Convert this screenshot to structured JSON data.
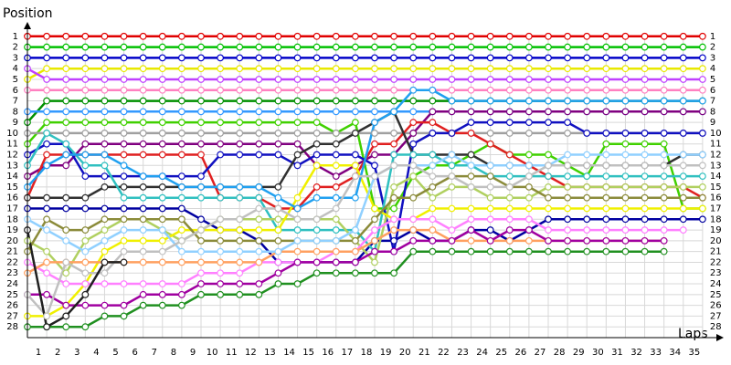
{
  "chart_data": {
    "type": "line",
    "title": "Position",
    "x_label": "Laps",
    "y_inverted": true,
    "grid": true,
    "x": [
      0,
      1,
      2,
      3,
      4,
      5,
      6,
      7,
      8,
      9,
      10,
      11,
      12,
      13,
      14,
      15,
      16,
      17,
      18,
      19,
      20,
      21,
      22,
      23,
      24,
      25,
      26,
      27,
      28,
      29,
      30,
      31,
      32,
      33,
      34,
      35
    ],
    "xlim": [
      0,
      36
    ],
    "xticks": [
      1,
      2,
      3,
      4,
      5,
      6,
      7,
      8,
      9,
      10,
      11,
      12,
      13,
      14,
      15,
      16,
      17,
      18,
      19,
      20,
      21,
      22,
      23,
      24,
      25,
      26,
      27,
      28,
      29,
      30,
      31,
      32,
      33,
      34,
      35
    ],
    "ylim": [
      0,
      29
    ],
    "yticks": [
      1,
      2,
      3,
      4,
      5,
      6,
      7,
      8,
      9,
      10,
      11,
      12,
      13,
      14,
      15,
      16,
      17,
      18,
      19,
      20,
      21,
      22,
      23,
      24,
      25,
      26,
      27,
      28
    ],
    "series": [
      {
        "color": "#e00000",
        "values": [
          1,
          1,
          1,
          1,
          1,
          1,
          1,
          1,
          1,
          1,
          1,
          1,
          1,
          1,
          1,
          1,
          1,
          1,
          1,
          1,
          1,
          1,
          1,
          1,
          1,
          1,
          1,
          1,
          1,
          1,
          1,
          1,
          1,
          1,
          1,
          1
        ]
      },
      {
        "color": "#00c000",
        "values": [
          2,
          2,
          2,
          2,
          2,
          2,
          2,
          2,
          2,
          2,
          2,
          2,
          2,
          2,
          2,
          2,
          2,
          2,
          2,
          2,
          2,
          2,
          2,
          2,
          2,
          2,
          2,
          2,
          2,
          2,
          2,
          2,
          2,
          2,
          2,
          2
        ]
      },
      {
        "color": "#0000c8",
        "values": [
          3,
          3,
          3,
          3,
          3,
          3,
          3,
          3,
          3,
          3,
          3,
          3,
          3,
          3,
          3,
          3,
          3,
          3,
          3,
          3,
          3,
          3,
          3,
          3,
          3,
          3,
          3,
          3,
          3,
          3,
          3,
          3,
          3,
          3,
          3,
          3
        ]
      },
      {
        "color": "#e8e800",
        "values": [
          5,
          4,
          4,
          4,
          4,
          4,
          4,
          4,
          4,
          4,
          4,
          4,
          4,
          4,
          4,
          4,
          4,
          4,
          4,
          4,
          4,
          4,
          4,
          4,
          4,
          4,
          4,
          4,
          4,
          4,
          4,
          4,
          4,
          4,
          4,
          4
        ]
      },
      {
        "color": "#c040ff",
        "values": [
          4,
          5,
          5,
          5,
          5,
          5,
          5,
          5,
          5,
          5,
          5,
          5,
          5,
          5,
          5,
          5,
          5,
          5,
          5,
          5,
          5,
          5,
          5,
          5,
          5,
          5,
          5,
          5,
          5,
          5,
          5,
          5,
          5,
          5,
          5,
          5
        ]
      },
      {
        "color": "#ff80c0",
        "values": [
          6,
          6,
          6,
          6,
          6,
          6,
          6,
          6,
          6,
          6,
          6,
          6,
          6,
          6,
          6,
          6,
          6,
          6,
          6,
          6,
          6,
          6,
          6,
          6,
          6,
          6,
          6,
          6,
          6,
          6,
          6,
          6,
          6,
          6,
          6,
          6
        ]
      },
      {
        "color": "#009000",
        "values": [
          9,
          7,
          7,
          7,
          7,
          7,
          7,
          7,
          7,
          7,
          7,
          7,
          7,
          7,
          7,
          7,
          7,
          7,
          7,
          7,
          7,
          7,
          7,
          7,
          7,
          7,
          7,
          7,
          7,
          7,
          7,
          7,
          7,
          7,
          7,
          7
        ]
      },
      {
        "color": "#3399ff",
        "values": [
          8,
          8,
          8,
          8,
          8,
          8,
          8,
          8,
          8,
          8,
          8,
          8,
          8,
          8,
          8,
          8,
          8,
          8,
          8,
          8,
          8,
          8,
          8,
          8,
          8,
          8,
          8,
          8,
          8,
          8,
          8,
          8,
          8,
          8,
          8,
          8
        ]
      },
      {
        "color": "#40d000",
        "values": [
          11,
          9,
          9,
          9,
          9,
          9,
          9,
          9,
          9,
          9,
          9,
          9,
          9,
          9,
          9,
          9,
          10,
          9,
          17,
          17,
          14,
          13,
          13,
          12,
          11,
          12,
          12,
          12,
          13,
          14,
          11,
          11,
          11,
          11,
          17,
          17
        ]
      },
      {
        "color": "#a0a0a0",
        "values": [
          10,
          10,
          10,
          10,
          10,
          10,
          10,
          10,
          10,
          10,
          10,
          10,
          10,
          10,
          10,
          10,
          10,
          10,
          10,
          10,
          10,
          10,
          10,
          10,
          10,
          10,
          10,
          10,
          10,
          10,
          10,
          10,
          10,
          10,
          10,
          10
        ]
      },
      {
        "color": "#800080",
        "values": [
          14,
          13,
          13,
          11,
          11,
          11,
          11,
          11,
          11,
          11,
          11,
          11,
          11,
          11,
          11,
          13,
          14,
          13,
          12,
          12,
          10,
          8,
          8,
          8,
          8,
          8,
          8,
          8,
          8,
          8,
          8,
          8,
          8,
          8,
          8,
          8
        ]
      },
      {
        "color": "#e02020",
        "values": [
          16,
          12,
          12,
          12,
          12,
          12,
          12,
          12,
          12,
          12,
          16,
          16,
          16,
          17,
          17,
          15,
          15,
          14,
          11,
          11,
          9,
          9,
          10,
          10,
          11,
          12,
          13,
          14,
          15,
          15,
          15,
          15,
          15,
          15,
          15,
          16
        ]
      },
      {
        "color": "#0000a0",
        "values": [
          17,
          17,
          17,
          17,
          17,
          17,
          17,
          17,
          17,
          18,
          19,
          19,
          20,
          22,
          22,
          22,
          22,
          22,
          20,
          20,
          19,
          20,
          20,
          19,
          19,
          20,
          19,
          18,
          18,
          18,
          18,
          18,
          18,
          18,
          18,
          18
        ]
      },
      {
        "color": "#1010c0",
        "values": [
          12,
          11,
          11,
          14,
          14,
          14,
          14,
          14,
          14,
          14,
          12,
          12,
          12,
          12,
          13,
          12,
          12,
          12,
          13,
          21,
          11,
          10,
          10,
          9,
          9,
          9,
          9,
          9,
          9,
          10,
          10,
          10,
          10,
          10,
          10,
          10
        ]
      },
      {
        "color": "#303030",
        "values": [
          16,
          16,
          16,
          16,
          15,
          15,
          15,
          15,
          15,
          15,
          15,
          15,
          15,
          15,
          12,
          11,
          11,
          10,
          9,
          8,
          12,
          12,
          12,
          12,
          13,
          13,
          13,
          13,
          13,
          13,
          13,
          13,
          13,
          13,
          12,
          12
        ]
      },
      {
        "color": "#30c0c0",
        "values": [
          13,
          10,
          11,
          13,
          13,
          16,
          16,
          16,
          16,
          16,
          16,
          16,
          16,
          19,
          19,
          19,
          19,
          19,
          21,
          12,
          12,
          12,
          13,
          13,
          14,
          14,
          14,
          14,
          14,
          14,
          14,
          14,
          14,
          14,
          14,
          14
        ]
      },
      {
        "color": "#b0d060",
        "values": [
          20,
          21,
          23,
          20,
          19,
          18,
          18,
          19,
          20,
          19,
          18,
          18,
          18,
          18,
          18,
          18,
          18,
          20,
          22,
          15,
          14,
          16,
          15,
          15,
          16,
          16,
          16,
          15,
          15,
          15,
          15,
          15,
          15,
          15,
          15,
          15
        ]
      },
      {
        "color": "#f0f000",
        "values": [
          27,
          27,
          26,
          24,
          21,
          20,
          20,
          20,
          19,
          19,
          19,
          19,
          19,
          19,
          16,
          13,
          13,
          13,
          17,
          18,
          18,
          17,
          17,
          17,
          17,
          17,
          17,
          17,
          17,
          17,
          17,
          17,
          17,
          17,
          17,
          17
        ]
      },
      {
        "color": "#8b8b3a",
        "values": [
          21,
          18,
          19,
          19,
          18,
          18,
          18,
          18,
          18,
          20,
          20,
          20,
          20,
          20,
          20,
          20,
          20,
          20,
          18,
          16,
          16,
          15,
          14,
          14,
          14,
          15,
          15,
          16,
          16,
          16,
          16,
          16,
          16,
          16,
          16,
          16
        ]
      },
      {
        "color": "#ff80ff",
        "values": [
          22,
          23,
          24,
          24,
          24,
          24,
          24,
          24,
          24,
          23,
          23,
          23,
          22,
          22,
          22,
          22,
          21,
          21,
          19,
          18,
          18,
          18,
          19,
          18,
          18,
          18,
          18,
          19,
          19,
          19,
          19,
          19,
          19,
          19,
          19,
          null
        ]
      },
      {
        "color": "#ffa060",
        "values": [
          23,
          22,
          22,
          22,
          22,
          22,
          22,
          22,
          22,
          22,
          22,
          22,
          22,
          21,
          21,
          21,
          21,
          21,
          20,
          19,
          19,
          19,
          20,
          20,
          20,
          20,
          20,
          20,
          20,
          20,
          20,
          20,
          20,
          20,
          null,
          null
        ]
      },
      {
        "color": "#209020",
        "values": [
          28,
          28,
          28,
          28,
          27,
          27,
          26,
          26,
          26,
          25,
          25,
          25,
          25,
          24,
          24,
          23,
          23,
          23,
          23,
          23,
          21,
          21,
          21,
          21,
          21,
          21,
          21,
          21,
          21,
          21,
          21,
          21,
          21,
          21,
          null,
          null
        ]
      },
      {
        "color": "#a000a0",
        "values": [
          25,
          25,
          26,
          26,
          26,
          26,
          25,
          25,
          25,
          24,
          24,
          24,
          24,
          23,
          22,
          22,
          22,
          22,
          21,
          21,
          20,
          20,
          20,
          19,
          20,
          19,
          19,
          20,
          20,
          20,
          20,
          20,
          20,
          20,
          null,
          null
        ]
      },
      {
        "color": "#20a0f0",
        "values": [
          15,
          13,
          12,
          12,
          12,
          13,
          14,
          14,
          15,
          15,
          15,
          15,
          15,
          16,
          17,
          16,
          16,
          16,
          9,
          8,
          6,
          6,
          7,
          7,
          7,
          7,
          7,
          7,
          7,
          7,
          7,
          7,
          7,
          7,
          7,
          7
        ]
      },
      {
        "color": "#90d0ff",
        "values": [
          18,
          19,
          20,
          21,
          20,
          19,
          19,
          19,
          21,
          21,
          21,
          21,
          21,
          21,
          20,
          20,
          20,
          19,
          14,
          13,
          13,
          13,
          12,
          13,
          13,
          13,
          13,
          13,
          12,
          12,
          12,
          12,
          12,
          12,
          12,
          12
        ]
      },
      {
        "color": "#c0c0c0",
        "values": [
          25,
          27,
          22,
          23,
          23,
          21,
          21,
          21,
          20,
          19,
          18,
          18,
          17,
          17,
          18,
          18,
          17,
          14,
          14,
          13,
          13,
          14,
          14,
          15,
          15,
          15,
          14,
          13,
          13,
          13,
          13,
          13,
          13,
          13,
          13,
          13
        ]
      },
      {
        "color": "#202020",
        "values": [
          19,
          28,
          27,
          25,
          22,
          22,
          null,
          null,
          null,
          null,
          null,
          null,
          null,
          null,
          null,
          null,
          null,
          null,
          null,
          null,
          null,
          null,
          null,
          null,
          null,
          null,
          null,
          null,
          null,
          null,
          null,
          null,
          null,
          null,
          null,
          null
        ]
      }
    ]
  }
}
